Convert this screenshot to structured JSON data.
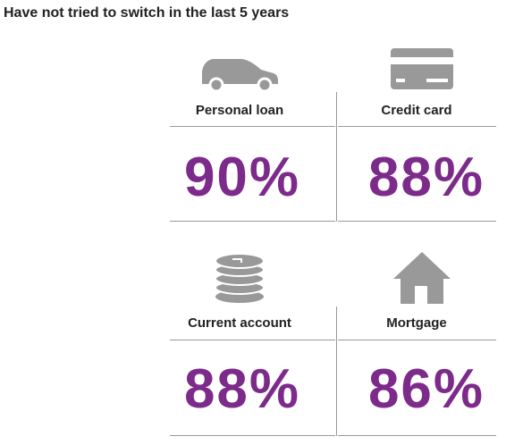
{
  "header": {
    "title": "Have not tried to switch in the last 5 years"
  },
  "items": [
    {
      "label": "Personal loan",
      "value": "90%"
    },
    {
      "label": "Credit card",
      "value": "88%"
    },
    {
      "label": "Current account",
      "value": "88%"
    },
    {
      "label": "Mortgage",
      "value": "86%"
    }
  ]
}
